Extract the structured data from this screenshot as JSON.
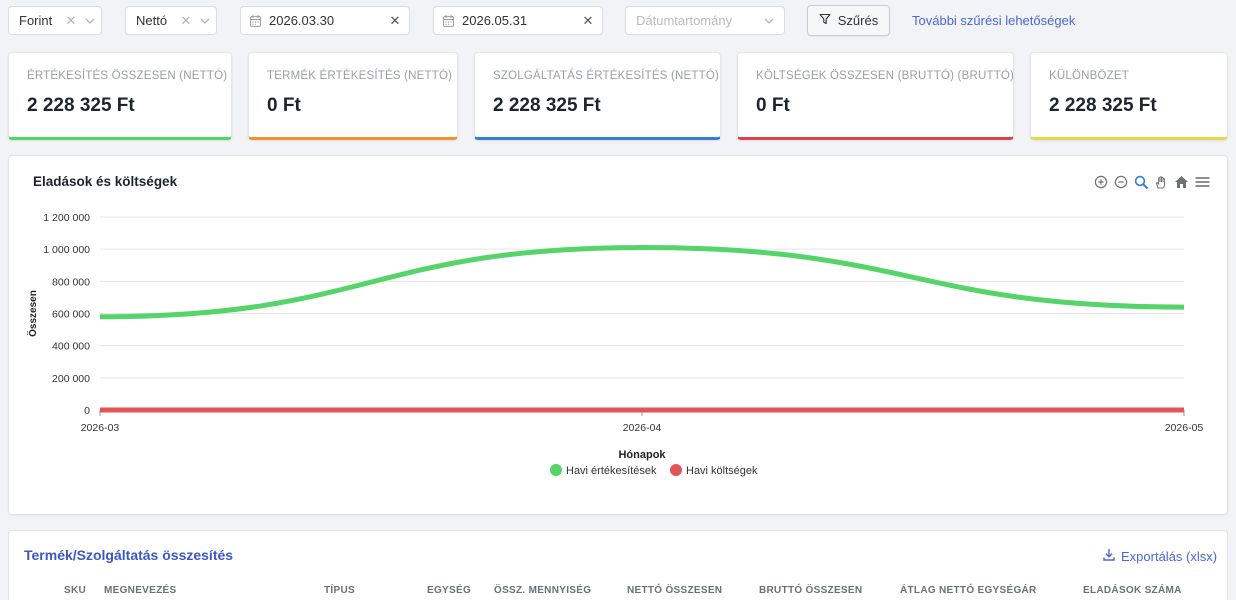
{
  "filters": {
    "currency": "Forint",
    "vat_mode": "Nettó",
    "date_from": "2026.03.30",
    "date_to": "2026.05.31",
    "date_range_placeholder": "Dátumtartomány",
    "filter_button": "Szűrés",
    "more_filters_link": "További szűrési lehetőségek"
  },
  "cards": [
    {
      "label": "ÉRTÉKESÍTÉS ÖSSZESEN (NETTÓ)",
      "value": "2 228 325 Ft",
      "color": "#4cd964"
    },
    {
      "label": "TERMÉK ÉRTÉKESÍTÉS (NETTÓ)",
      "value": "0 Ft",
      "color": "#f0932b"
    },
    {
      "label": "SZOLGÁLTATÁS ÉRTÉKESÍTÉS (NETTÓ)",
      "value": "2 228 325 Ft",
      "color": "#3a7bd5"
    },
    {
      "label": "KÖLTSÉGEK ÖSSZESEN (BRUTTÓ) (BRUTTÓ)",
      "value": "0 Ft",
      "color": "#e0404a"
    },
    {
      "label": "KÜLÖNBÖZET",
      "value": "2 228 325 Ft",
      "color": "#e6d84a"
    }
  ],
  "chart_panel": {
    "title": "Eladások és költségek"
  },
  "chart_data": {
    "type": "line",
    "x": [
      "2026-03",
      "2026-04",
      "2026-05"
    ],
    "series": [
      {
        "name": "Havi értékesítések",
        "values": [
          580000,
          1010000,
          640000
        ],
        "color": "#55d46a"
      },
      {
        "name": "Havi költségek",
        "values": [
          0,
          0,
          0
        ],
        "color": "#e05555"
      }
    ],
    "xlabel": "Hónapok",
    "ylabel": "Összesen",
    "ylim": [
      0,
      1200000
    ],
    "yticks": [
      "0",
      "200 000",
      "400 000",
      "600 000",
      "800 000",
      "1 000 000",
      "1 200 000"
    ],
    "grid": true,
    "legend": "bottom"
  },
  "summary_panel": {
    "title": "Termék/Szolgáltatás összesítés",
    "export_label": "Exportálás (xlsx)",
    "columns": [
      "SKU",
      "MEGNEVEZÉS",
      "TÍPUS",
      "EGYSÉG",
      "ÖSSZ. MENNYISÉG",
      "NETTÓ ÖSSZESEN",
      "BRUTTÓ ÖSSZESEN",
      "ÁTLAG NETTÓ EGYSÉGÁR",
      "ELADÁSOK SZÁMA"
    ]
  }
}
